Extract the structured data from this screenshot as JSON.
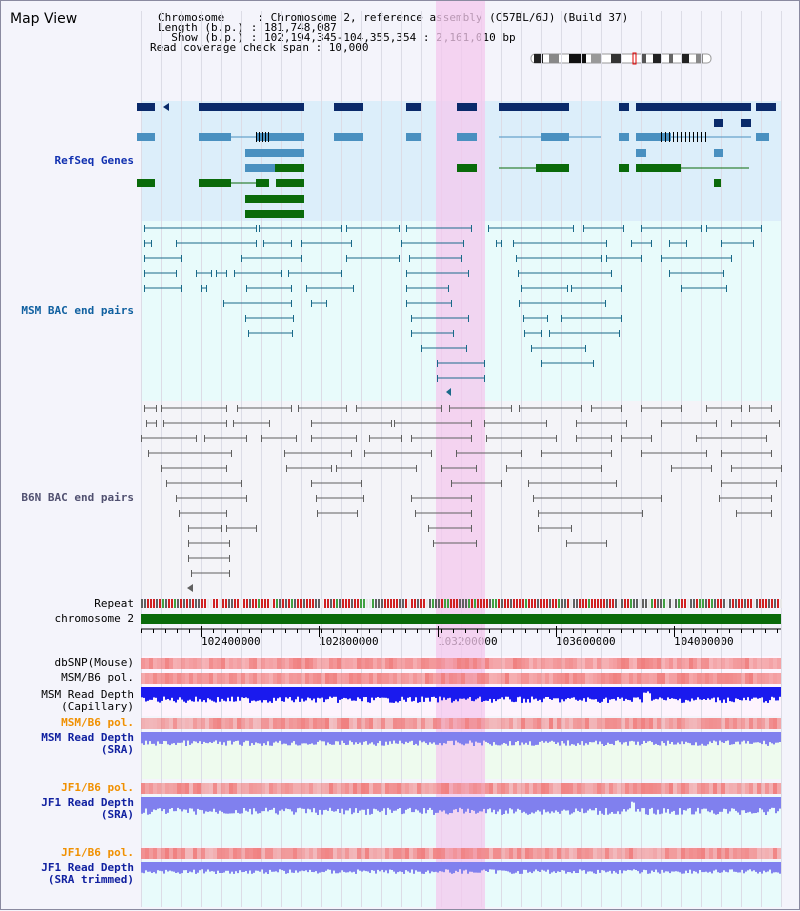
{
  "view_title": "Map View",
  "info": {
    "chromosome_line": "Chromosome     : Chromosome 2, reference assembly (C57BL/6J) (Build 37)",
    "length_line": "Length (b.p.) : 181,748,087",
    "show_line": "  Show (b.p.) : 102,194,345-104,355,354 : 2,161,010 bp",
    "coverage_line": "Read coverage check span : 10,000"
  },
  "tracks": {
    "refseq": "RefSeq Genes",
    "msm_bac": "MSM BAC end pairs",
    "b6n_bac": "B6N BAC end pairs",
    "repeat": "Repeat",
    "chromosome": "chromosome 2",
    "dbsnp": "dbSNP(Mouse)",
    "msm_b6_pol_1": "MSM/B6 pol.",
    "msm_read_depth_cap": "MSM Read Depth\n(Capillary)",
    "msm_b6_pol_2": "MSM/B6 pol.",
    "msm_read_depth_sra": "MSM Read Depth\n(SRA)",
    "jf1_b6_pol_1": "JF1/B6 pol.",
    "jf1_read_depth_sra": "JF1 Read Depth\n(SRA)",
    "jf1_b6_pol_2": "JF1/B6 pol.",
    "jf1_read_depth_trim": "JF1 Read Depth\n(SRA trimmed)"
  },
  "axis": {
    "ticks": [
      "102400000",
      "102800000",
      "103200000",
      "103600000",
      "104000000"
    ]
  },
  "colors": {
    "refseq_bg": "#dceefa",
    "msm_bg": "#e8fbfb",
    "b6n_bg": "#f4f4f8",
    "highlight": "#f4c8ee",
    "gene_dark": "#0a2a6a",
    "gene_light": "#4a90c0",
    "gene_green": "#0a6a0a",
    "msm_pair": "#1a6a8a",
    "b6n_pair": "#606060",
    "chrom_bar": "#0a6a0a",
    "depth_blue": "#1a1aee",
    "depth_light": "#8080ee",
    "pol_red": "#f08080"
  }
}
